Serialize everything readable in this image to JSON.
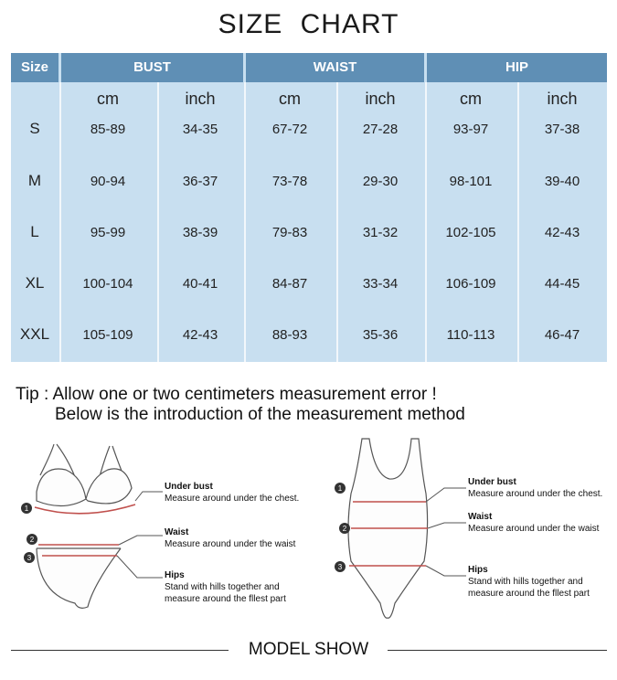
{
  "title": "SIZE  CHART",
  "table": {
    "headers": {
      "size": "Size",
      "bust": "BUST",
      "waist": "WAIST",
      "hip": "HIP"
    },
    "units": [
      "cm",
      "inch",
      "cm",
      "inch",
      "cm",
      "inch"
    ],
    "rows": [
      {
        "size": "S",
        "cells": [
          "85-89",
          "34-35",
          "67-72",
          "27-28",
          "93-97",
          "37-38"
        ]
      },
      {
        "size": "M",
        "cells": [
          "90-94",
          "36-37",
          "73-78",
          "29-30",
          "98-101",
          "39-40"
        ]
      },
      {
        "size": "L",
        "cells": [
          "95-99",
          "38-39",
          "79-83",
          "31-32",
          "102-105",
          "42-43"
        ]
      },
      {
        "size": "XL",
        "cells": [
          "100-104",
          "40-41",
          "84-87",
          "33-34",
          "106-109",
          "44-45"
        ]
      },
      {
        "size": "XXL",
        "cells": [
          "105-109",
          "42-43",
          "88-93",
          "35-36",
          "110-113",
          "46-47"
        ]
      }
    ]
  },
  "tip": {
    "line1": "Tip : Allow one or two centimeters measurement error !",
    "line2": "Below is the introduction of the measurement method"
  },
  "left_diagram": {
    "markers": [
      "1",
      "2",
      "3"
    ],
    "under_bust_title": "Under bust",
    "under_bust_desc": "Measure around under the chest.",
    "waist_title": "Waist",
    "waist_desc": "Measure around under the waist",
    "hips_title": "Hips",
    "hips_desc1": "Stand with hills together and",
    "hips_desc2": "measure around the fllest part"
  },
  "right_diagram": {
    "markers": [
      "1",
      "2",
      "3"
    ],
    "under_bust_title": "Under bust",
    "under_bust_desc": "Measure around under the chest.",
    "waist_title": "Waist",
    "waist_desc": "Measure around under the waist",
    "hips_title": "Hips",
    "hips_desc1": "Stand with hills together and",
    "hips_desc2": "measure around the fllest part"
  },
  "footer": "MODEL SHOW",
  "colors": {
    "header_bg": "#5f8fb5",
    "table_bg": "#c8dff0",
    "measure_line": "#c0504d"
  }
}
